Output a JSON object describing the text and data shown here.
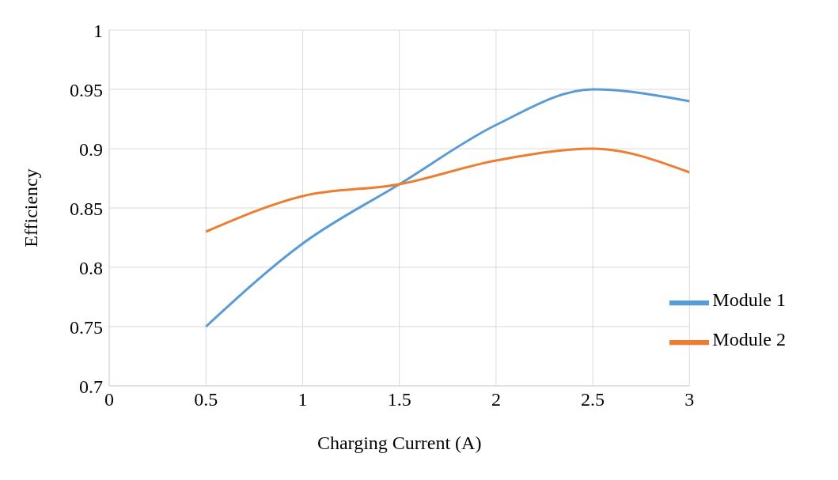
{
  "chart_data": {
    "type": "line",
    "xlabel": "Charging Current (A)",
    "ylabel": "Efficiency",
    "x": [
      0.5,
      1,
      1.5,
      2,
      2.5,
      3
    ],
    "series": [
      {
        "name": "Module 1",
        "color": "#5b9bd5",
        "values": [
          0.75,
          0.82,
          0.87,
          0.92,
          0.95,
          0.94
        ]
      },
      {
        "name": "Module 2",
        "color": "#ed7d31",
        "values": [
          0.83,
          0.86,
          0.87,
          0.89,
          0.9,
          0.88
        ]
      }
    ],
    "xlim": [
      0,
      3
    ],
    "xticks": [
      0,
      0.5,
      1,
      1.5,
      2,
      2.5,
      3
    ],
    "ylim": [
      0.7,
      1
    ],
    "yticks": [
      0.7,
      0.75,
      0.8,
      0.85,
      0.9,
      0.95,
      1
    ],
    "grid": true,
    "legend": "right"
  }
}
